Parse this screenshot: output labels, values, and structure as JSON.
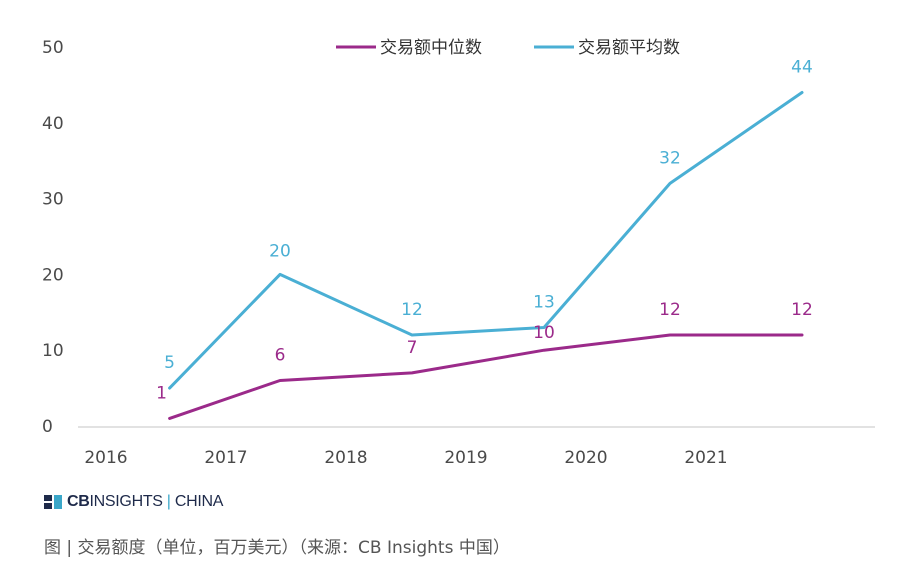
{
  "chart_data": {
    "type": "line",
    "categories": [
      "2016",
      "2017",
      "2018",
      "2019",
      "2020",
      "2021"
    ],
    "x_positions": [
      0.5,
      1.55,
      2.5,
      3.45,
      4.55,
      5.5
    ],
    "series": [
      {
        "name": "交易额中位数",
        "color": "#9b2a8a",
        "values": [
          1,
          6,
          7,
          10,
          12,
          12
        ]
      },
      {
        "name": "交易额平均数",
        "color": "#4aafd4",
        "values": [
          5,
          20,
          12,
          13,
          32,
          44
        ]
      }
    ],
    "ylim": [
      0,
      50
    ],
    "yticks": [
      0,
      10,
      20,
      30,
      40,
      50
    ],
    "legend_position": "top-right",
    "grid": false
  },
  "brand": {
    "cb": "CB",
    "insights": "INSIGHTS",
    "separator": "|",
    "china": "CHINA"
  },
  "caption": "图 | 交易额度（单位，百万美元）（来源：CB Insights 中国）"
}
